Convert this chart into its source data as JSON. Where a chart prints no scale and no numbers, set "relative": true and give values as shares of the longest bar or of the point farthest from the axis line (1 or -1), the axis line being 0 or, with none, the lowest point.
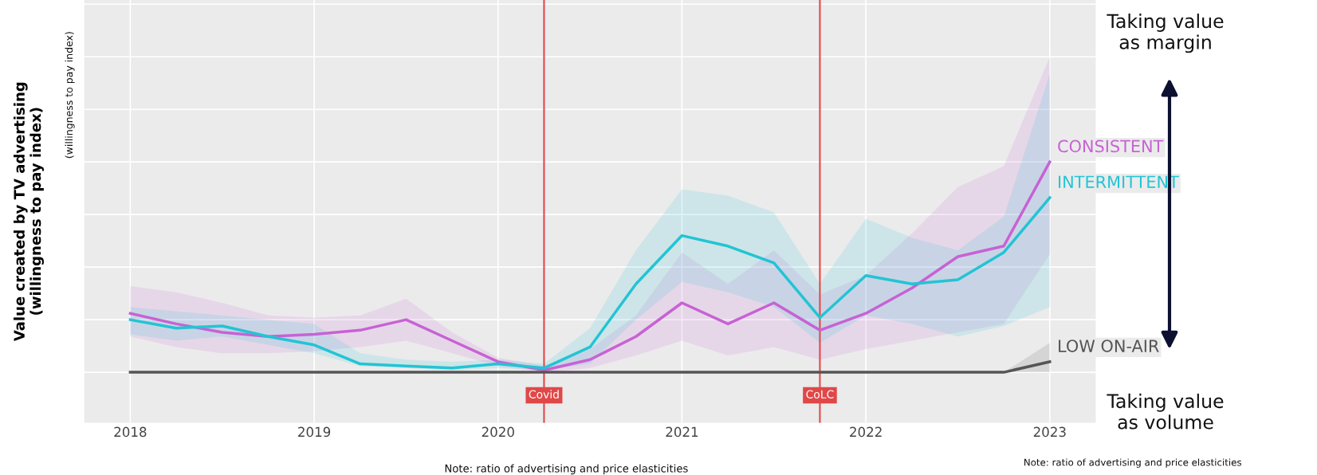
{
  "chart_data": {
    "type": "line",
    "relative": true,
    "ylabel": "Value created by TV advertising\n(willingness to pay index)",
    "x": [
      2018,
      2018.25,
      2018.5,
      2018.75,
      2019,
      2019.25,
      2019.5,
      2019.75,
      2020,
      2020.25,
      2020.5,
      2020.75,
      2021,
      2021.25,
      2021.5,
      2021.75,
      2022,
      2022.25,
      2022.5,
      2022.75,
      2023
    ],
    "xlim": [
      2017.75,
      2023.25
    ],
    "xticks": [
      2018,
      2019,
      2020,
      2021,
      2022,
      2023
    ],
    "tick_labels": "x",
    "grid": true,
    "series": [
      {
        "name": "CONSISTENT",
        "color": "#c762d4",
        "values": [
          0.28,
          0.23,
          0.19,
          0.17,
          0.18,
          0.2,
          0.25,
          0.15,
          0.05,
          0.01,
          0.06,
          0.17,
          0.33,
          0.23,
          0.33,
          0.2,
          0.28,
          0.4,
          0.55,
          0.6,
          1
        ],
        "upper": [
          0.41,
          0.38,
          0.33,
          0.27,
          0.26,
          0.27,
          0.35,
          0.19,
          0.07,
          0.03,
          0.11,
          0.27,
          0.57,
          0.42,
          0.58,
          0.37,
          0.46,
          0.66,
          0.88,
          0.98,
          1.5
        ],
        "lower": [
          0.17,
          0.12,
          0.09,
          0.09,
          0.1,
          0.12,
          0.15,
          0.09,
          0.03,
          0,
          0.02,
          0.08,
          0.15,
          0.08,
          0.12,
          0.06,
          0.11,
          0.15,
          0.19,
          0.23,
          0.56
        ]
      },
      {
        "name": "INTERMITTENT",
        "color": "#22c4d4",
        "values": [
          0.25,
          0.21,
          0.22,
          0.17,
          0.13,
          0.04,
          0.03,
          0.02,
          0.04,
          0.02,
          0.12,
          0.42,
          0.65,
          0.6,
          0.52,
          0.26,
          0.46,
          0.42,
          0.44,
          0.57,
          0.83
        ],
        "upper": [
          0.31,
          0.29,
          0.27,
          0.25,
          0.23,
          0.09,
          0.06,
          0.05,
          0.06,
          0.04,
          0.21,
          0.58,
          0.87,
          0.84,
          0.76,
          0.42,
          0.73,
          0.64,
          0.58,
          0.74,
          1.42
        ],
        "lower": [
          0.18,
          0.15,
          0.17,
          0.13,
          0.09,
          0.03,
          0.02,
          0.01,
          0.02,
          0.01,
          0.04,
          0.25,
          0.43,
          0.38,
          0.31,
          0.14,
          0.27,
          0.23,
          0.17,
          0.22,
          0.31
        ]
      },
      {
        "name": "LOW ON-AIR",
        "color": "#555555",
        "values": [
          0,
          0,
          0,
          0,
          0,
          0,
          0,
          0,
          0,
          0,
          0,
          0,
          0,
          0,
          0,
          0,
          0,
          0,
          0,
          0,
          0.05
        ],
        "upper": [
          0,
          0,
          0,
          0,
          0,
          0,
          0,
          0,
          0,
          0,
          0,
          0,
          0,
          0,
          0,
          0,
          0,
          0,
          0,
          0,
          0.14
        ],
        "lower": [
          0,
          0,
          0,
          0,
          0,
          0,
          0,
          0,
          0,
          0,
          0,
          0,
          0,
          0,
          0,
          0,
          0,
          0,
          0,
          0,
          0
        ]
      }
    ],
    "ref_lines": [
      {
        "axis": "x",
        "value": 2020.25,
        "label": "Covid",
        "color": "#e04848"
      },
      {
        "axis": "x",
        "value": 2021.75,
        "label": "CoLC",
        "color": "#e04848"
      }
    ],
    "annotations": [
      "Note: ratio of advertising and price elasticities",
      "Note: ratio of advertising and price elasticities",
      "Taking value\nas margin",
      "Taking value\nas volume",
      "(willingness to pay index)"
    ]
  }
}
